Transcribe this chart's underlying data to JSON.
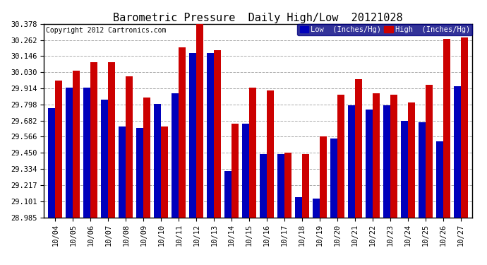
{
  "title": "Barometric Pressure  Daily High/Low  20121028",
  "copyright": "Copyright 2012 Cartronics.com",
  "legend_low": "Low  (Inches/Hg)",
  "legend_high": "High  (Inches/Hg)",
  "dates": [
    "10/04",
    "10/05",
    "10/06",
    "10/07",
    "10/08",
    "10/09",
    "10/10",
    "10/11",
    "10/12",
    "10/13",
    "10/14",
    "10/15",
    "10/16",
    "10/17",
    "10/18",
    "10/19",
    "10/20",
    "10/21",
    "10/22",
    "10/23",
    "10/24",
    "10/25",
    "10/26",
    "10/27"
  ],
  "low_values": [
    29.77,
    29.92,
    29.92,
    29.83,
    29.64,
    29.63,
    29.8,
    29.88,
    30.17,
    30.17,
    29.32,
    29.66,
    29.44,
    29.44,
    29.13,
    29.12,
    29.55,
    29.79,
    29.76,
    29.79,
    29.68,
    29.67,
    29.53,
    29.93
  ],
  "high_values": [
    29.97,
    30.04,
    30.1,
    30.1,
    30.0,
    29.85,
    29.64,
    30.21,
    30.4,
    30.19,
    29.66,
    29.92,
    29.9,
    29.45,
    29.44,
    29.57,
    29.87,
    29.98,
    29.88,
    29.87,
    29.81,
    29.94,
    30.27,
    30.28
  ],
  "ylim_min": 28.985,
  "ylim_max": 30.378,
  "yticks": [
    28.985,
    29.101,
    29.217,
    29.334,
    29.45,
    29.566,
    29.682,
    29.798,
    29.914,
    30.03,
    30.146,
    30.262,
    30.378
  ],
  "bar_color_low": "#0000bb",
  "bar_color_high": "#cc0000",
  "bg_color": "#ffffff",
  "grid_color": "#aaaaaa",
  "title_fontsize": 11,
  "tick_fontsize": 7.5,
  "legend_fontsize": 7.5,
  "copyright_fontsize": 7
}
